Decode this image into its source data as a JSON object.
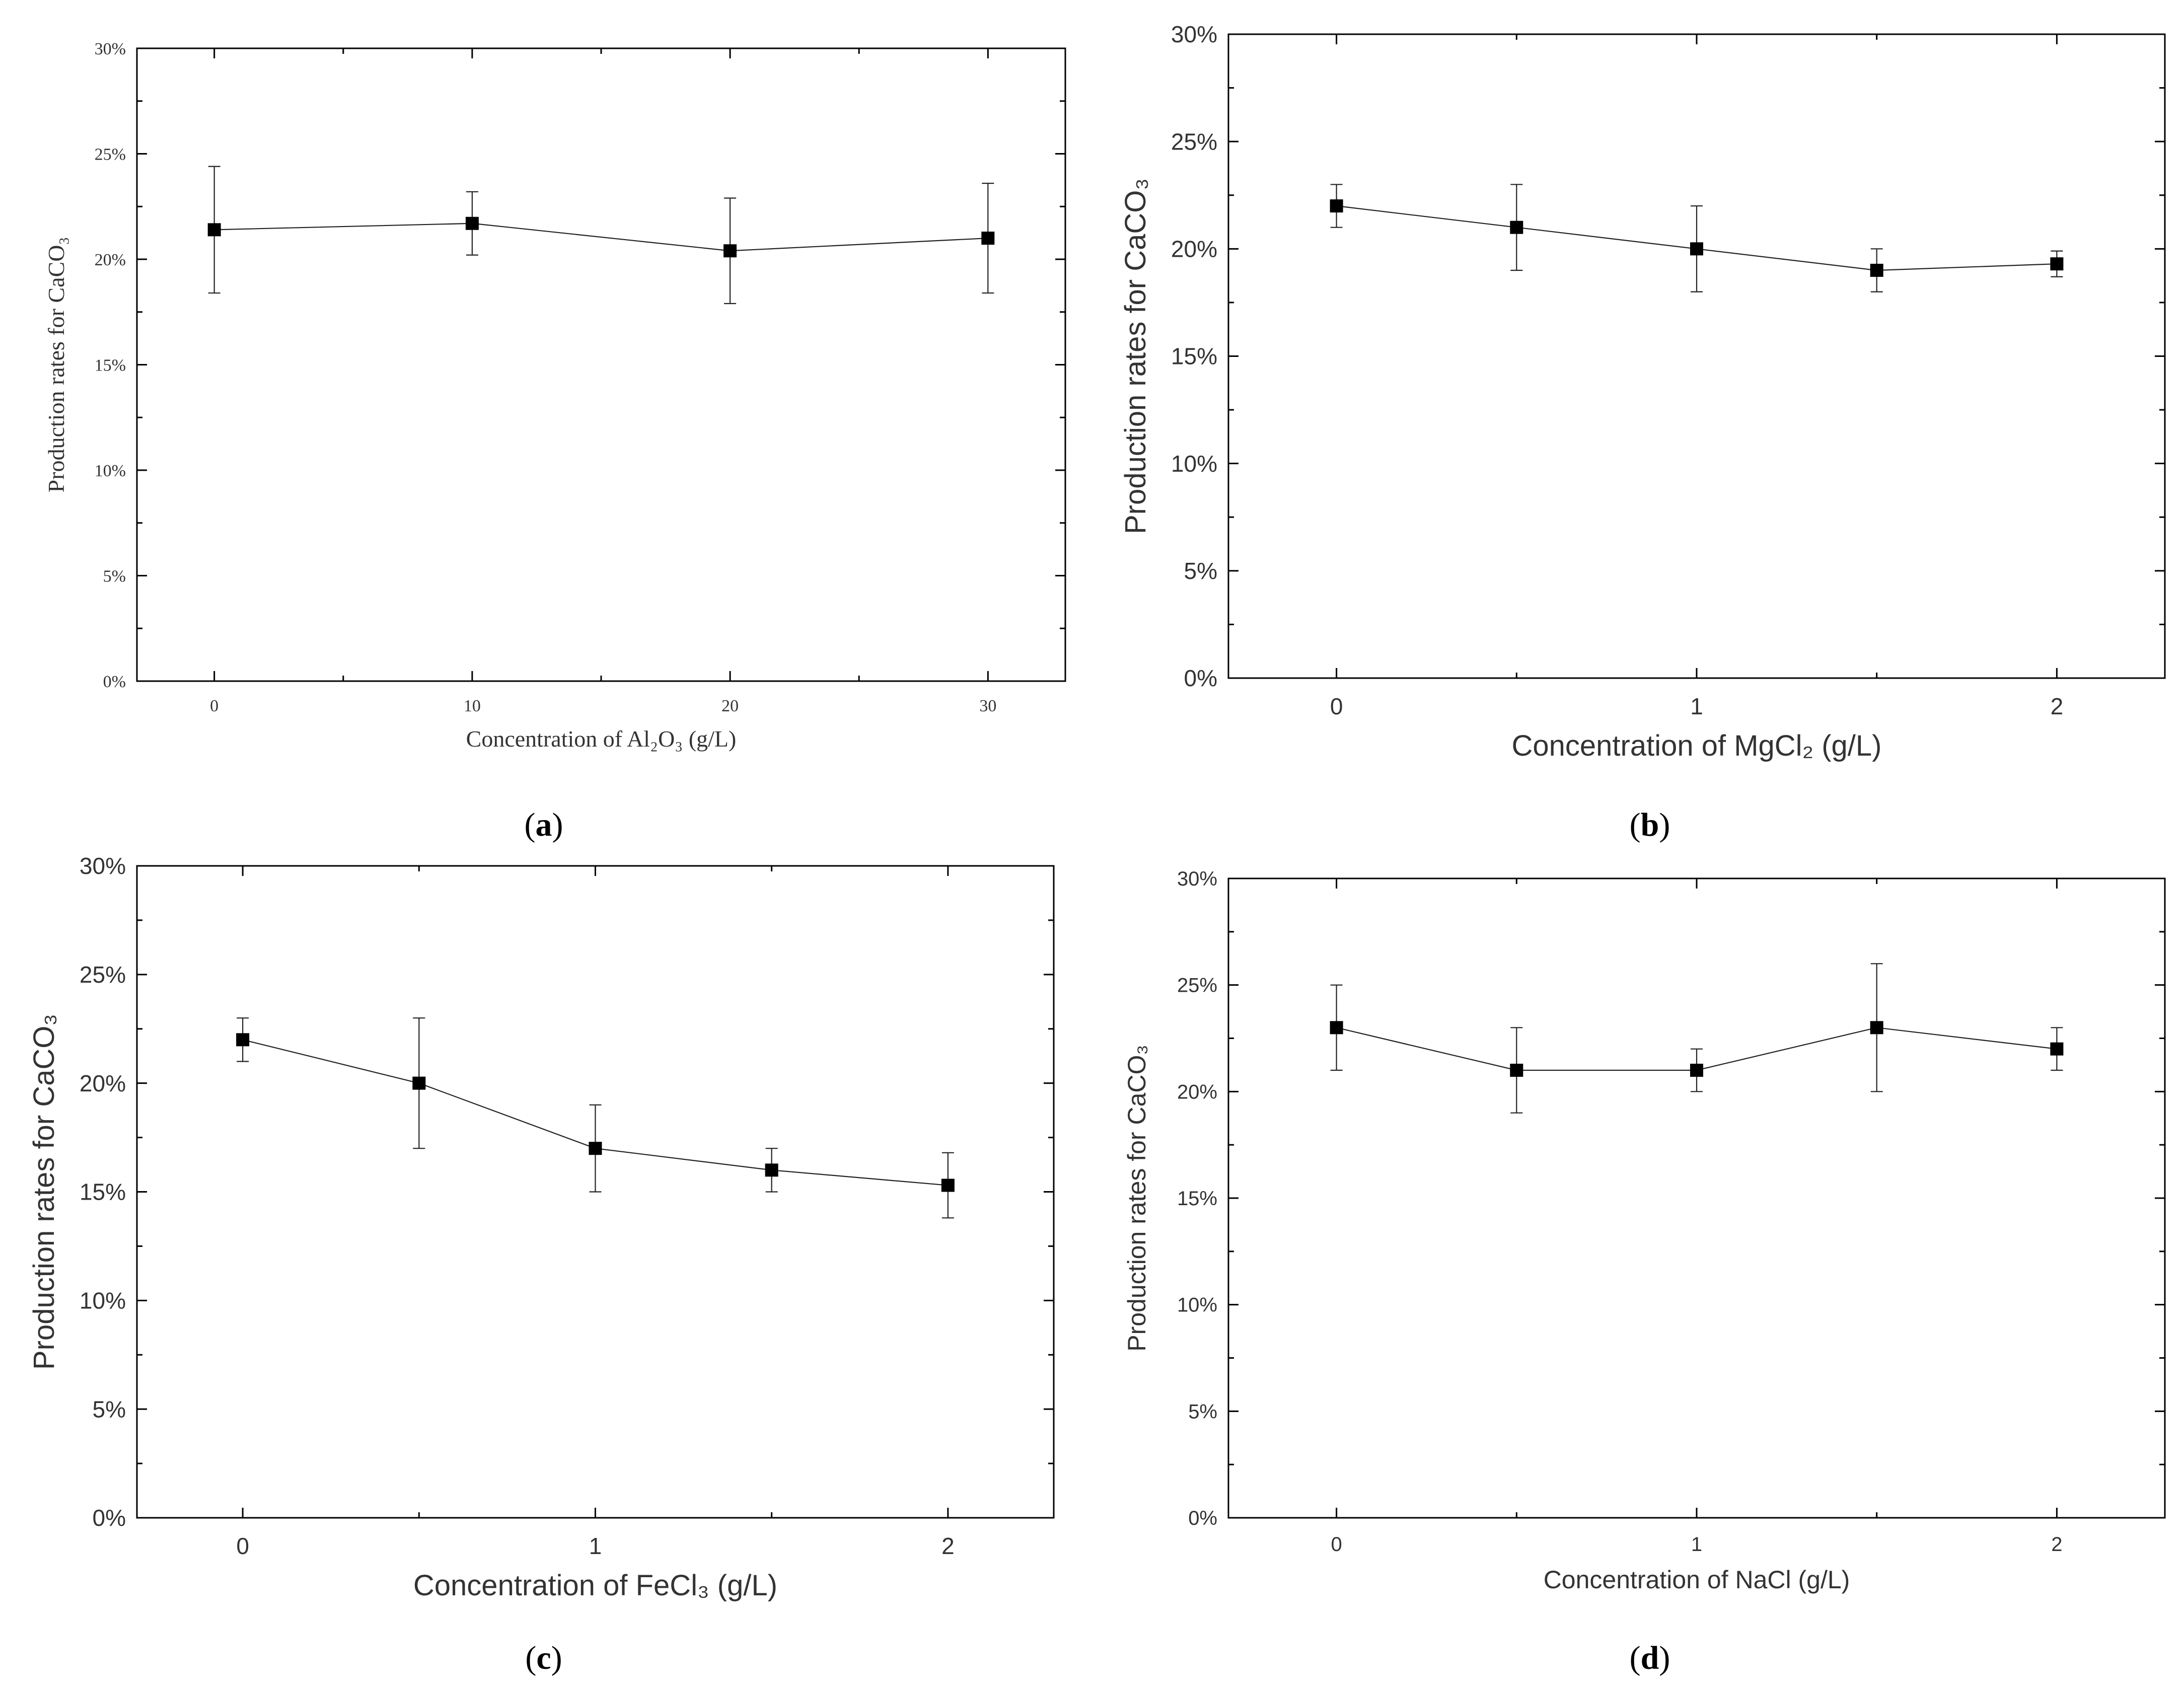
{
  "figure": {
    "panel_captions": [
      {
        "open": "(",
        "letter": "a",
        "close": ")"
      },
      {
        "open": "(",
        "letter": "b",
        "close": ")"
      },
      {
        "open": "(",
        "letter": "c",
        "close": ")"
      },
      {
        "open": "(",
        "letter": "d",
        "close": ")"
      }
    ]
  },
  "chart_data": [
    {
      "type": "line",
      "panel": "a",
      "title": "",
      "xlabel": "Concentration of Al₂O₃ (g/L)",
      "ylabel": "Production rates for CaCO₃",
      "x": [
        0,
        10,
        20,
        30
      ],
      "y": [
        0.214,
        0.217,
        0.204,
        0.21
      ],
      "error": [
        0.03,
        0.015,
        0.025,
        0.026
      ],
      "xlim": [
        -3,
        33
      ],
      "ylim": [
        0,
        0.3
      ],
      "xticks": [
        0,
        10,
        20,
        30
      ],
      "xtick_labels": [
        "0",
        "10",
        "20",
        "30"
      ],
      "yticks": [
        0,
        0.05,
        0.1,
        0.15,
        0.2,
        0.25,
        0.3
      ],
      "ytick_labels": [
        "0%",
        "5%",
        "10%",
        "15%",
        "20%",
        "25%",
        "30%"
      ],
      "marker": "square",
      "grid": false
    },
    {
      "type": "line",
      "panel": "b",
      "title": "",
      "xlabel": "Concentration of MgCl₂ (g/L)",
      "ylabel": "Production rates for CaCO₃",
      "x": [
        0,
        0.5,
        1,
        1.5,
        2
      ],
      "y": [
        0.22,
        0.21,
        0.2,
        0.19,
        0.193
      ],
      "error": [
        0.01,
        0.02,
        0.02,
        0.01,
        0.006
      ],
      "xlim": [
        -0.3,
        2.3
      ],
      "ylim": [
        0,
        0.3
      ],
      "xticks": [
        0,
        1,
        2
      ],
      "xtick_labels": [
        "0",
        "1",
        "2"
      ],
      "yticks": [
        0,
        0.05,
        0.1,
        0.15,
        0.2,
        0.25,
        0.3
      ],
      "ytick_labels": [
        "0%",
        "5%",
        "10%",
        "15%",
        "20%",
        "25%",
        "30%"
      ],
      "marker": "square",
      "grid": false
    },
    {
      "type": "line",
      "panel": "c",
      "title": "",
      "xlabel": "Concentration of FeCl₃ (g/L)",
      "ylabel": "Production rates for CaCO₃",
      "x": [
        0,
        0.5,
        1,
        1.5,
        2
      ],
      "y": [
        0.22,
        0.2,
        0.17,
        0.16,
        0.153
      ],
      "error": [
        0.01,
        0.03,
        0.02,
        0.01,
        0.015
      ],
      "xlim": [
        -0.3,
        2.3
      ],
      "ylim": [
        0,
        0.3
      ],
      "xticks": [
        0,
        1,
        2
      ],
      "xtick_labels": [
        "0",
        "1",
        "2"
      ],
      "yticks": [
        0,
        0.05,
        0.1,
        0.15,
        0.2,
        0.25,
        0.3
      ],
      "ytick_labels": [
        "0%",
        "5%",
        "10%",
        "15%",
        "20%",
        "25%",
        "30%"
      ],
      "marker": "square",
      "grid": false
    },
    {
      "type": "line",
      "panel": "d",
      "title": "",
      "xlabel": "Concentration of NaCl (g/L)",
      "ylabel": "Production rates for CaCO₃",
      "x": [
        0,
        0.5,
        1,
        1.5,
        2
      ],
      "y": [
        0.23,
        0.21,
        0.21,
        0.23,
        0.22
      ],
      "error": [
        0.02,
        0.02,
        0.01,
        0.03,
        0.01
      ],
      "xlim": [
        -0.3,
        2.3
      ],
      "ylim": [
        0,
        0.3
      ],
      "xticks": [
        0,
        1,
        2
      ],
      "xtick_labels": [
        "0",
        "1",
        "2"
      ],
      "yticks": [
        0,
        0.05,
        0.1,
        0.15,
        0.2,
        0.25,
        0.3
      ],
      "ytick_labels": [
        "0%",
        "5%",
        "10%",
        "15%",
        "20%",
        "25%",
        "30%"
      ],
      "marker": "square",
      "grid": false
    }
  ]
}
